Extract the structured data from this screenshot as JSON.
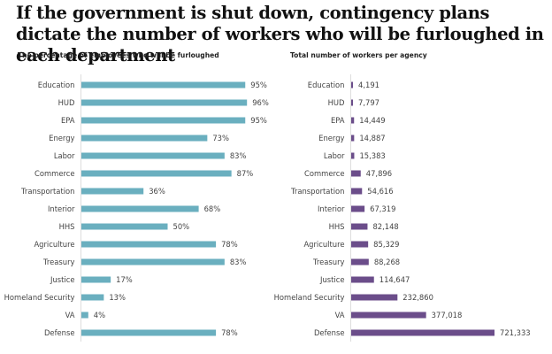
{
  "title": "If the government is shut down, contingency plans dictate the number of workers who will be furloughed in each department",
  "colors": {
    "left_bar": "#6aafbf",
    "right_bar": "#6b4d8a",
    "axis": "#dddddd"
  },
  "chart_data": [
    {
      "type": "bar",
      "orientation": "horizontal",
      "title": "The percentage of employees who will be furloughed",
      "categories": [
        "Education",
        "HUD",
        "EPA",
        "Energy",
        "Labor",
        "Commerce",
        "Transportation",
        "Interior",
        "HHS",
        "Agriculture",
        "Treasury",
        "Justice",
        "Homeland Security",
        "VA",
        "Defense"
      ],
      "values": [
        95,
        96,
        95,
        73,
        83,
        87,
        36,
        68,
        50,
        78,
        83,
        17,
        13,
        4,
        78
      ],
      "labels": [
        "95%",
        "96%",
        "95%",
        "73%",
        "83%",
        "87%",
        "36%",
        "68%",
        "50%",
        "78%",
        "83%",
        "17%",
        "13%",
        "4%",
        "78%"
      ],
      "unit": "%",
      "xlim": [
        0,
        100
      ],
      "grid": false
    },
    {
      "type": "bar",
      "orientation": "horizontal",
      "title": "Total number of workers per agency",
      "categories": [
        "Education",
        "HUD",
        "EPA",
        "Energy",
        "Labor",
        "Commerce",
        "Transportation",
        "Interior",
        "HHS",
        "Agriculture",
        "Treasury",
        "Justice",
        "Homeland Security",
        "VA",
        "Defense"
      ],
      "values": [
        4191,
        7797,
        14449,
        14887,
        15383,
        47896,
        54616,
        67319,
        82148,
        85329,
        88268,
        114647,
        232860,
        377018,
        721333
      ],
      "labels": [
        "4,191",
        "7,797",
        "14,449",
        "14,887",
        "15,383",
        "47,896",
        "54,616",
        "67,319",
        "82,148",
        "85,329",
        "88,268",
        "114,647",
        "232,860",
        "377,018",
        "721,333"
      ],
      "xlim": [
        0,
        721333
      ],
      "grid": false
    }
  ]
}
